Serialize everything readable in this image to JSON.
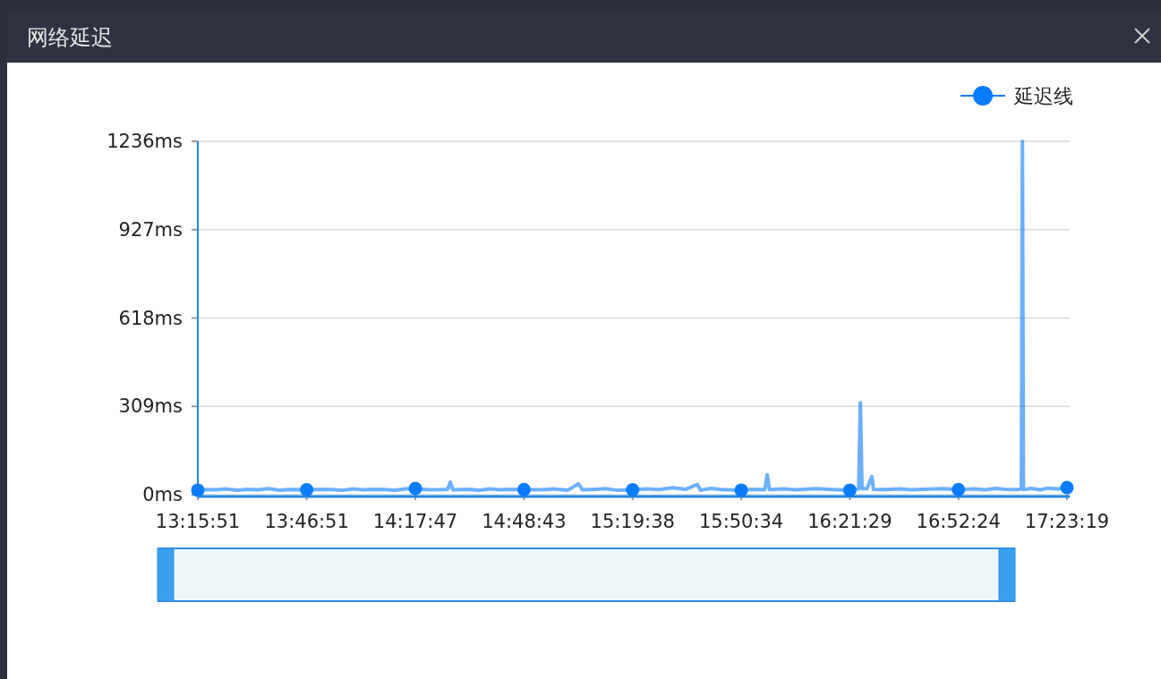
{
  "chart_data": {
    "type": "line",
    "title": "网络延迟",
    "legend": "top right",
    "grid": "y",
    "xlim": [
      13.26417,
      17.38861
    ],
    "ylim": [
      0,
      1236
    ],
    "xticks": [
      {
        "value": 13.26417,
        "label": "13:15:51"
      },
      {
        "value": 13.78083,
        "label": "13:46:51"
      },
      {
        "value": 14.29639,
        "label": "14:17:47"
      },
      {
        "value": 14.81194,
        "label": "14:48:43"
      },
      {
        "value": 15.32722,
        "label": "15:19:38"
      },
      {
        "value": 15.84278,
        "label": "15:50:34"
      },
      {
        "value": 16.35806,
        "label": "16:21:29"
      },
      {
        "value": 16.87333,
        "label": "16:52:24"
      },
      {
        "value": 17.38861,
        "label": "17:23:19"
      }
    ],
    "yticks": [
      {
        "value": 0,
        "label": "0ms"
      },
      {
        "value": 309,
        "label": "309ms"
      },
      {
        "value": 618,
        "label": "618ms"
      },
      {
        "value": 927,
        "label": "927ms"
      },
      {
        "value": 1236,
        "label": "1236ms"
      }
    ],
    "series": [
      {
        "name": "延迟线",
        "type": "scatter",
        "color": "#0a7cff",
        "marker": "circle",
        "x": [
          13.26417,
          13.78083,
          14.29639,
          14.81194,
          15.32722,
          15.84278,
          16.35806,
          16.87333,
          17.38861
        ],
        "values": [
          16,
          17,
          22,
          18,
          17,
          16,
          16,
          18,
          25
        ]
      },
      {
        "color": "#0a7cff",
        "marker": "none",
        "x": [
          13.26417,
          13.3,
          13.35,
          13.4,
          13.45,
          13.5,
          13.55,
          13.6,
          13.65,
          13.7,
          13.78083,
          13.85,
          13.9,
          13.95,
          14.0,
          14.05,
          14.1,
          14.15,
          14.2,
          14.25,
          14.29639,
          14.35,
          14.4,
          14.45,
          14.462,
          14.475,
          14.55,
          14.6,
          14.65,
          14.7,
          14.75,
          14.81194,
          14.9,
          14.95,
          15.02,
          15.07,
          15.09,
          15.15,
          15.2,
          15.25,
          15.32722,
          15.4,
          15.45,
          15.52,
          15.58,
          15.634,
          15.65,
          15.7,
          15.75,
          15.84278,
          15.9,
          15.955,
          15.966,
          15.977,
          16.05,
          16.1,
          16.2,
          16.28,
          16.35806,
          16.4,
          16.408,
          16.416,
          16.44,
          16.463,
          16.47,
          16.52,
          16.6,
          16.65,
          16.7,
          16.8,
          16.87333,
          16.95,
          17.0,
          17.05,
          17.1,
          17.15,
          17.172,
          17.177,
          17.182,
          17.22,
          17.26,
          17.3,
          17.34,
          17.38861
        ],
        "values": [
          16,
          18,
          17,
          20,
          16,
          19,
          17,
          21,
          16,
          18,
          17,
          19,
          18,
          16,
          20,
          17,
          19,
          18,
          16,
          20,
          22,
          18,
          17,
          19,
          44,
          17,
          19,
          16,
          20,
          17,
          19,
          18,
          17,
          20,
          16,
          38,
          17,
          19,
          21,
          16,
          17,
          20,
          18,
          24,
          19,
          36,
          16,
          22,
          18,
          16,
          19,
          18,
          70,
          18,
          20,
          17,
          21,
          18,
          16,
          20,
          322,
          21,
          22,
          64,
          19,
          18,
          20,
          17,
          19,
          21,
          18,
          20,
          17,
          22,
          19,
          18,
          20,
          1236,
          18,
          22,
          17,
          23,
          20,
          25
        ]
      }
    ]
  }
}
